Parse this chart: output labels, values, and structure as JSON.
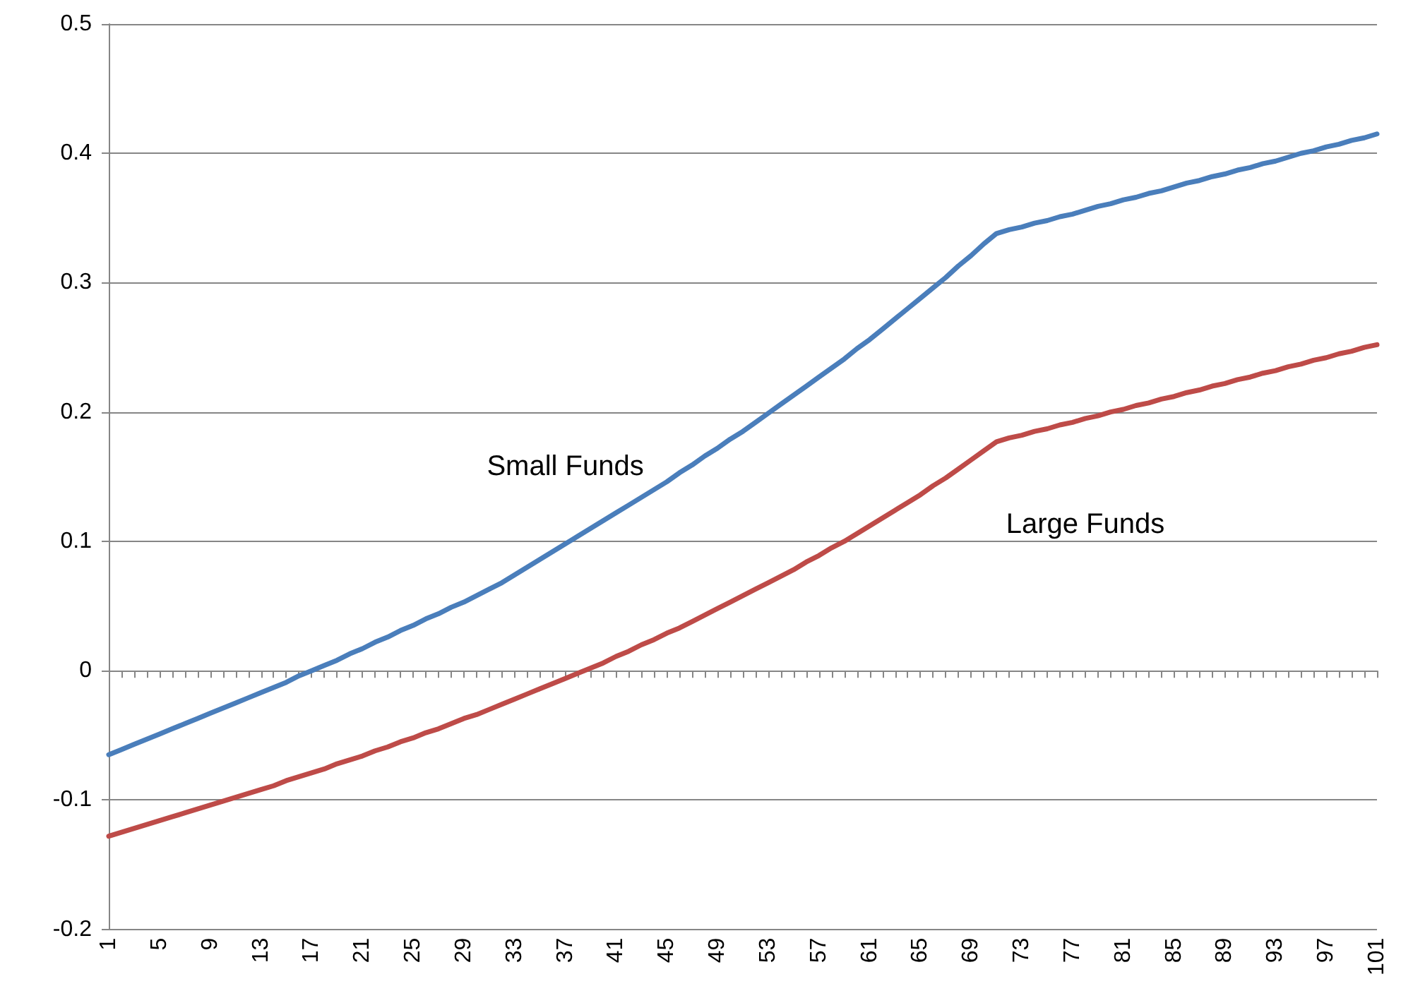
{
  "chart_data": {
    "type": "line",
    "categories": [
      "1",
      null,
      null,
      null,
      "5",
      null,
      null,
      null,
      "9",
      null,
      null,
      null,
      "13",
      null,
      null,
      null,
      "17",
      null,
      null,
      null,
      "21",
      null,
      null,
      null,
      "25",
      null,
      null,
      null,
      "29",
      null,
      null,
      null,
      "33",
      null,
      null,
      null,
      "37",
      null,
      null,
      null,
      "41",
      null,
      null,
      null,
      "45",
      null,
      null,
      null,
      "49",
      null,
      null,
      null,
      "53",
      null,
      null,
      null,
      "57",
      null,
      null,
      null,
      "61",
      null,
      null,
      null,
      "65",
      null,
      null,
      null,
      "69",
      null,
      null,
      null,
      "73",
      null,
      null,
      null,
      "77",
      null,
      null,
      null,
      "81",
      null,
      null,
      null,
      "85",
      null,
      null,
      null,
      "89",
      null,
      null,
      null,
      "93",
      null,
      null,
      null,
      "97",
      null,
      null,
      null,
      "101"
    ],
    "series": [
      {
        "name": "Small Funds",
        "color": "#4a7ebb",
        "values": [
          -0.065,
          -0.061,
          -0.057,
          -0.053,
          -0.049,
          -0.045,
          -0.041,
          -0.037,
          -0.033,
          -0.029,
          -0.025,
          -0.021,
          -0.017,
          -0.013,
          -0.009,
          -0.004,
          0.0,
          0.004,
          0.008,
          0.013,
          0.017,
          0.022,
          0.026,
          0.031,
          0.035,
          0.04,
          0.044,
          0.049,
          0.053,
          0.058,
          0.063,
          0.068,
          0.074,
          0.08,
          0.086,
          0.092,
          0.098,
          0.104,
          0.11,
          0.116,
          0.122,
          0.128,
          0.134,
          0.14,
          0.146,
          0.153,
          0.159,
          0.166,
          0.172,
          0.179,
          0.185,
          0.192,
          0.199,
          0.206,
          0.213,
          0.22,
          0.227,
          0.234,
          0.241,
          0.249,
          0.256,
          0.264,
          0.272,
          0.28,
          0.288,
          0.296,
          0.304,
          0.313,
          0.321,
          0.33,
          0.338,
          0.341,
          0.343,
          0.346,
          0.348,
          0.351,
          0.353,
          0.356,
          0.359,
          0.361,
          0.364,
          0.366,
          0.369,
          0.371,
          0.374,
          0.377,
          0.379,
          0.382,
          0.384,
          0.387,
          0.389,
          0.392,
          0.394,
          0.397,
          0.4,
          0.402,
          0.405,
          0.407,
          0.41,
          0.412,
          0.415
        ]
      },
      {
        "name": "Large Funds",
        "color": "#be4b48",
        "values": [
          -0.128,
          -0.125,
          -0.122,
          -0.119,
          -0.116,
          -0.113,
          -0.11,
          -0.107,
          -0.104,
          -0.101,
          -0.098,
          -0.095,
          -0.092,
          -0.089,
          -0.085,
          -0.082,
          -0.079,
          -0.076,
          -0.072,
          -0.069,
          -0.066,
          -0.062,
          -0.059,
          -0.055,
          -0.052,
          -0.048,
          -0.045,
          -0.041,
          -0.037,
          -0.034,
          -0.03,
          -0.026,
          -0.022,
          -0.018,
          -0.014,
          -0.01,
          -0.006,
          -0.002,
          0.002,
          0.006,
          0.011,
          0.015,
          0.02,
          0.024,
          0.029,
          0.033,
          0.038,
          0.043,
          0.048,
          0.053,
          0.058,
          0.063,
          0.068,
          0.073,
          0.078,
          0.084,
          0.089,
          0.095,
          0.1,
          0.106,
          0.112,
          0.118,
          0.124,
          0.13,
          0.136,
          0.143,
          0.149,
          0.156,
          0.163,
          0.17,
          0.177,
          0.18,
          0.182,
          0.185,
          0.187,
          0.19,
          0.192,
          0.195,
          0.197,
          0.2,
          0.202,
          0.205,
          0.207,
          0.21,
          0.212,
          0.215,
          0.217,
          0.22,
          0.222,
          0.225,
          0.227,
          0.23,
          0.232,
          0.235,
          0.237,
          0.24,
          0.242,
          0.245,
          0.247,
          0.25,
          0.252
        ]
      }
    ],
    "ylim": [
      -0.2,
      0.5
    ],
    "yticks": [
      -0.2,
      -0.1,
      0,
      0.1,
      0.2,
      0.3,
      0.4,
      0.5
    ],
    "grid": "y",
    "legend": false,
    "marker": "none",
    "line_style": "solid"
  }
}
